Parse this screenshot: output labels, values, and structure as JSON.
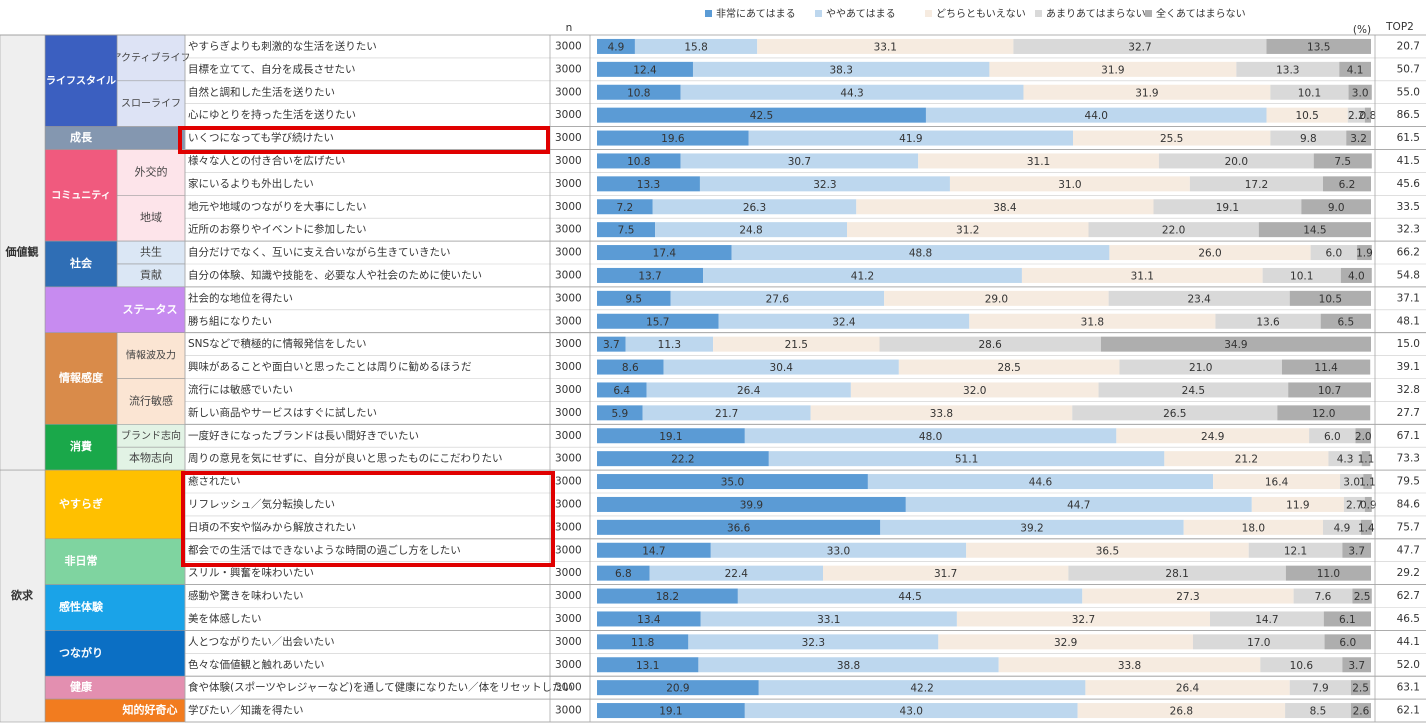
{
  "chart_data": {
    "type": "bar",
    "n_label": "n",
    "unit_label": "(%)",
    "top2_label": "TOP2",
    "xlim": [
      0,
      100
    ],
    "series": [
      {
        "name": "非常にあてはまる",
        "color": "#5b9bd5"
      },
      {
        "name": "ややあてはまる",
        "color": "#bdd7ee"
      },
      {
        "name": "どちらともいえない",
        "color": "#f6ebe0"
      },
      {
        "name": "あまりあてはまらない",
        "color": "#d9d9d9"
      },
      {
        "name": "全くあてはまらない",
        "color": "#aeaeae"
      }
    ],
    "sections": [
      {
        "label": "価値観",
        "groups": [
          {
            "label": "ライフスタイル",
            "color": "#3b5fc0",
            "subgroups": [
              {
                "label": "アクティブライフ",
                "color": "#dde3f5",
                "rows": [
                  {
                    "label": "やすらぎよりも刺激的な生活を送りたい",
                    "n": 3000,
                    "values": [
                      4.9,
                      15.8,
                      33.1,
                      32.7,
                      13.5
                    ],
                    "top2": 20.7
                  },
                  {
                    "label": "目標を立てて、自分を成長させたい",
                    "n": 3000,
                    "values": [
                      12.4,
                      38.3,
                      31.9,
                      13.3,
                      4.1
                    ],
                    "top2": 50.7
                  }
                ]
              },
              {
                "label": "スローライフ",
                "color": "#dde3f5",
                "rows": [
                  {
                    "label": "自然と調和した生活を送りたい",
                    "n": 3000,
                    "values": [
                      10.8,
                      44.3,
                      31.9,
                      10.1,
                      3.0
                    ],
                    "top2": 55.0
                  },
                  {
                    "label": "心にゆとりを持った生活を送りたい",
                    "n": 3000,
                    "values": [
                      42.5,
                      44.0,
                      10.5,
                      2.2,
                      0.8
                    ],
                    "top2": 86.5
                  }
                ]
              }
            ]
          },
          {
            "label": "成長",
            "color": "#8497b0",
            "rows": [
              {
                "label": "いくつになっても学び続けたい",
                "n": 3000,
                "values": [
                  19.6,
                  41.9,
                  25.5,
                  9.8,
                  3.2
                ],
                "top2": 61.5
              }
            ]
          },
          {
            "label": "コミュニティ",
            "color": "#f05a7e",
            "subgroups": [
              {
                "label": "外交的",
                "color": "#fde4ea",
                "rows": [
                  {
                    "label": "様々な人との付き合いを広げたい",
                    "n": 3000,
                    "values": [
                      10.8,
                      30.7,
                      31.1,
                      20.0,
                      7.5
                    ],
                    "top2": 41.5
                  },
                  {
                    "label": "家にいるよりも外出したい",
                    "n": 3000,
                    "values": [
                      13.3,
                      32.3,
                      31.0,
                      17.2,
                      6.2
                    ],
                    "top2": 45.6
                  }
                ]
              },
              {
                "label": "地域",
                "color": "#fde4ea",
                "rows": [
                  {
                    "label": "地元や地域のつながりを大事にしたい",
                    "n": 3000,
                    "values": [
                      7.2,
                      26.3,
                      38.4,
                      19.1,
                      9.0
                    ],
                    "top2": 33.5
                  },
                  {
                    "label": "近所のお祭りやイベントに参加したい",
                    "n": 3000,
                    "values": [
                      7.5,
                      24.8,
                      31.2,
                      22.0,
                      14.5
                    ],
                    "top2": 32.3
                  }
                ]
              }
            ]
          },
          {
            "label": "社会",
            "color": "#2f6eb5",
            "subgroups": [
              {
                "label": "共生",
                "color": "#dbe7f5",
                "rows": [
                  {
                    "label": "自分だけでなく、互いに支え合いながら生きていきたい",
                    "n": 3000,
                    "values": [
                      17.4,
                      48.8,
                      26.0,
                      6.0,
                      1.9
                    ],
                    "top2": 66.2
                  }
                ]
              },
              {
                "label": "貢献",
                "color": "#dbe7f5",
                "rows": [
                  {
                    "label": "自分の体験、知識や技能を、必要な人や社会のために使いたい",
                    "n": 3000,
                    "values": [
                      13.7,
                      41.2,
                      31.1,
                      10.1,
                      4.0
                    ],
                    "top2": 54.8
                  }
                ]
              }
            ]
          },
          {
            "label": "ステータス",
            "color": "#c78bf0",
            "rows": [
              {
                "label": "社会的な地位を得たい",
                "n": 3000,
                "values": [
                  9.5,
                  27.6,
                  29.0,
                  23.4,
                  10.5
                ],
                "top2": 37.1
              },
              {
                "label": "勝ち組になりたい",
                "n": 3000,
                "values": [
                  15.7,
                  32.4,
                  31.8,
                  13.6,
                  6.5
                ],
                "top2": 48.1
              }
            ]
          },
          {
            "label": "情報感度",
            "color": "#d98b4a",
            "subgroups": [
              {
                "label": "情報波及力",
                "color": "#fbe5d3",
                "rows": [
                  {
                    "label": "SNSなどで積極的に情報発信をしたい",
                    "n": 3000,
                    "values": [
                      3.7,
                      11.3,
                      21.5,
                      28.6,
                      34.9
                    ],
                    "top2": 15.0
                  },
                  {
                    "label": "興味があることや面白いと思ったことは周りに勧めるほうだ",
                    "n": 3000,
                    "values": [
                      8.6,
                      30.4,
                      28.5,
                      21.0,
                      11.4
                    ],
                    "top2": 39.1
                  }
                ]
              },
              {
                "label": "流行敏感",
                "color": "#fbe5d3",
                "rows": [
                  {
                    "label": "流行には敏感でいたい",
                    "n": 3000,
                    "values": [
                      6.4,
                      26.4,
                      32.0,
                      24.5,
                      10.7
                    ],
                    "top2": 32.8
                  },
                  {
                    "label": "新しい商品やサービスはすぐに試したい",
                    "n": 3000,
                    "values": [
                      5.9,
                      21.7,
                      33.8,
                      26.5,
                      12.0
                    ],
                    "top2": 27.7
                  }
                ]
              }
            ]
          },
          {
            "label": "消費",
            "color": "#1aa84a",
            "subgroups": [
              {
                "label": "ブランド志向",
                "color": "#e2f3e5",
                "rows": [
                  {
                    "label": "一度好きになったブランドは長い間好きでいたい",
                    "n": 3000,
                    "values": [
                      19.1,
                      48.0,
                      24.9,
                      6.0,
                      2.0
                    ],
                    "top2": 67.1
                  }
                ]
              },
              {
                "label": "本物志向",
                "color": "#e2f3e5",
                "rows": [
                  {
                    "label": "周りの意見を気にせずに、自分が良いと思ったものにこだわりたい",
                    "n": 3000,
                    "values": [
                      22.2,
                      51.1,
                      21.2,
                      4.3,
                      1.1
                    ],
                    "top2": 73.3
                  }
                ]
              }
            ]
          }
        ]
      },
      {
        "label": "欲求",
        "groups": [
          {
            "label": "やすらぎ",
            "color": "#ffc000",
            "rows": [
              {
                "label": "癒されたい",
                "n": 3000,
                "values": [
                  35.0,
                  44.6,
                  16.4,
                  3.0,
                  1.1
                ],
                "top2": 79.5
              },
              {
                "label": "リフレッシュ／気分転換したい",
                "n": 3000,
                "values": [
                  39.9,
                  44.7,
                  11.9,
                  2.7,
                  0.9
                ],
                "top2": 84.6
              },
              {
                "label": "日頃の不安や悩みから解放されたい",
                "n": 3000,
                "values": [
                  36.6,
                  39.2,
                  18.0,
                  4.9,
                  1.4
                ],
                "top2": 75.7
              }
            ]
          },
          {
            "label": "非日常",
            "color": "#7fd4a0",
            "rows": [
              {
                "label": "都会での生活ではできないような時間の過ごし方をしたい",
                "n": 3000,
                "values": [
                  14.7,
                  33.0,
                  36.5,
                  12.1,
                  3.7
                ],
                "top2": 47.7
              },
              {
                "label": "スリル・興奮を味わいたい",
                "n": 3000,
                "values": [
                  6.8,
                  22.4,
                  31.7,
                  28.1,
                  11.0
                ],
                "top2": 29.2
              }
            ]
          },
          {
            "label": "感性体験",
            "color": "#1aa3e8",
            "rows": [
              {
                "label": "感動や驚きを味わいたい",
                "n": 3000,
                "values": [
                  18.2,
                  44.5,
                  27.3,
                  7.6,
                  2.5
                ],
                "top2": 62.7
              },
              {
                "label": "美を体感したい",
                "n": 3000,
                "values": [
                  13.4,
                  33.1,
                  32.7,
                  14.7,
                  6.1
                ],
                "top2": 46.5
              }
            ]
          },
          {
            "label": "つながり",
            "color": "#0b6fc4",
            "rows": [
              {
                "label": "人とつながりたい／出会いたい",
                "n": 3000,
                "values": [
                  11.8,
                  32.3,
                  32.9,
                  17.0,
                  6.0
                ],
                "top2": 44.1
              },
              {
                "label": "色々な価値観と触れあいたい",
                "n": 3000,
                "values": [
                  13.1,
                  38.8,
                  33.8,
                  10.6,
                  3.7
                ],
                "top2": 52.0
              }
            ]
          },
          {
            "label": "健康",
            "color": "#e38fb0",
            "rows": [
              {
                "label": "食や体験(スポーツやレジャーなど)を通して健康になりたい／体をリセットしたい",
                "n": 3000,
                "values": [
                  20.9,
                  42.2,
                  26.4,
                  7.9,
                  2.5
                ],
                "top2": 63.1
              }
            ]
          },
          {
            "label": "知的好奇心",
            "color": "#f27c1f",
            "rows": [
              {
                "label": "学びたい／知識を得たい",
                "n": 3000,
                "values": [
                  19.1,
                  43.0,
                  26.8,
                  8.5,
                  2.6
                ],
                "top2": 62.1
              }
            ]
          }
        ]
      }
    ]
  }
}
